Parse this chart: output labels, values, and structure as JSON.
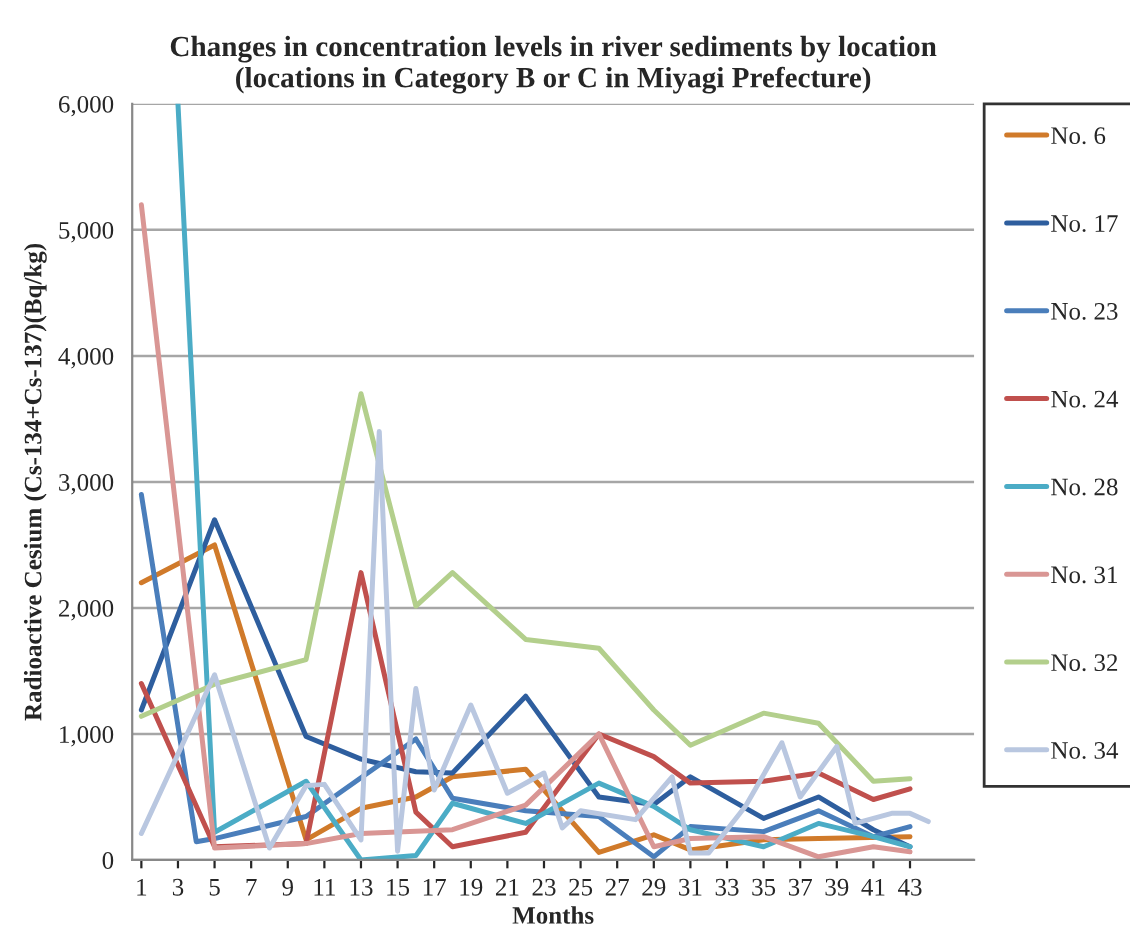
{
  "chart_data": {
    "type": "line",
    "title": "Changes in concentration levels in river sediments by location\n(locations in Category B or C in Miyagi Prefecture)",
    "xlabel": "Months",
    "ylabel": "Radioactive Cesium (Cs-134+Cs-137)(Bq/kg)",
    "xlim": [
      0.5,
      46.5
    ],
    "xticks": [
      1,
      3,
      5,
      7,
      9,
      11,
      13,
      15,
      17,
      19,
      21,
      23,
      25,
      27,
      29,
      31,
      33,
      35,
      37,
      39,
      41,
      43
    ],
    "ylim": [
      0,
      6000
    ],
    "yticks": [
      0,
      {
        "value": 1000,
        "label": "1,000"
      },
      {
        "value": 2000,
        "label": "2,000"
      },
      {
        "value": 3000,
        "label": "3,000"
      },
      {
        "value": 4000,
        "label": "4,000"
      },
      {
        "value": 5000,
        "label": "5,000"
      },
      {
        "value": 6000,
        "label": "6,000"
      }
    ],
    "grid": "y",
    "legend": "right",
    "marker": "none",
    "line_style": "solid",
    "series": [
      {
        "name": "No. 6",
        "color": "#d07a2a",
        "x": [
          1,
          5,
          10,
          13,
          16,
          18,
          22,
          26,
          29,
          31,
          35,
          38,
          43
        ],
        "values": [
          2200,
          2500,
          160,
          410,
          500,
          660,
          720,
          60,
          200,
          80,
          160,
          170,
          185
        ]
      },
      {
        "name": "No. 17",
        "color": "#2e5e9e",
        "x": [
          1,
          5,
          10,
          13,
          16,
          18,
          22,
          26,
          29,
          31,
          35,
          38,
          41,
          43
        ],
        "values": [
          1190,
          2700,
          980,
          800,
          700,
          690,
          1300,
          500,
          440,
          660,
          330,
          500,
          240,
          105
        ]
      },
      {
        "name": "No. 23",
        "color": "#4a7ebb",
        "x": [
          1,
          4,
          5,
          10,
          16,
          18,
          22,
          26,
          29,
          31,
          35,
          38,
          41,
          43
        ],
        "values": [
          2900,
          145,
          170,
          345,
          960,
          490,
          390,
          345,
          25,
          265,
          225,
          390,
          185,
          265
        ]
      },
      {
        "name": "No. 24",
        "color": "#c0504d",
        "x": [
          1,
          5,
          10,
          13,
          16,
          18,
          22,
          26,
          29,
          31,
          35,
          38,
          41,
          43
        ],
        "values": [
          1400,
          105,
          130,
          2280,
          380,
          105,
          220,
          1000,
          820,
          610,
          625,
          690,
          480,
          565
        ]
      },
      {
        "name": "No. 28",
        "color": "#4bacc6",
        "x": [
          3,
          5,
          10,
          13,
          16,
          18,
          22,
          26,
          29,
          31,
          35,
          38,
          41,
          43
        ],
        "values": [
          6000,
          220,
          625,
          0,
          35,
          450,
          290,
          610,
          425,
          240,
          105,
          290,
          185,
          105
        ]
      },
      {
        "name": "No. 31",
        "color": "#d99694",
        "x": [
          1,
          5,
          10,
          13,
          18,
          22,
          26,
          29,
          31,
          35,
          38,
          41,
          43
        ],
        "values": [
          5200,
          95,
          130,
          210,
          240,
          435,
          1000,
          105,
          170,
          185,
          25,
          105,
          65
        ]
      },
      {
        "name": "No. 32",
        "color": "#b3cf8c",
        "x": [
          1,
          5,
          10,
          13,
          16,
          18,
          22,
          26,
          29,
          31,
          35,
          38,
          41,
          43
        ],
        "values": [
          1140,
          1395,
          1590,
          3700,
          2015,
          2280,
          1750,
          1680,
          1190,
          910,
          1165,
          1085,
          625,
          645
        ]
      },
      {
        "name": "No. 34",
        "color": "#b9c7e0",
        "x": [
          1,
          5,
          8,
          10,
          11,
          13,
          14,
          15,
          16,
          17,
          19,
          21,
          23,
          24,
          25,
          28,
          30,
          31,
          32,
          34,
          36,
          37,
          39,
          40,
          42,
          43,
          44
        ],
        "values": [
          210,
          1470,
          95,
          590,
          600,
          160,
          3400,
          70,
          1360,
          555,
          1230,
          530,
          690,
          255,
          390,
          320,
          660,
          55,
          55,
          425,
          930,
          500,
          900,
          290,
          370,
          370,
          305
        ]
      }
    ]
  }
}
